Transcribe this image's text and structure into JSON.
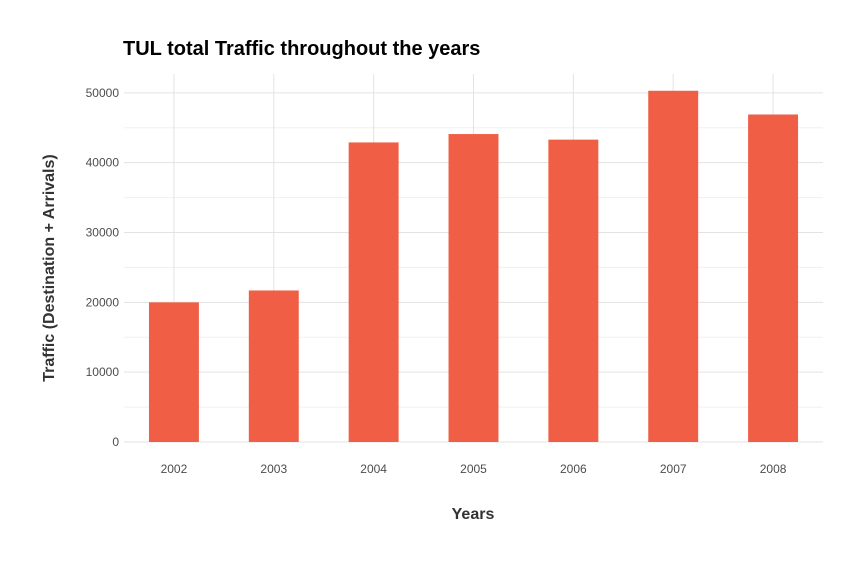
{
  "chart_data": {
    "type": "bar",
    "title": "TUL total Traffic throughout the years",
    "xlabel": "Years",
    "ylabel": "Traffic (Destination + Arrivals)",
    "categories": [
      "2002",
      "2003",
      "2004",
      "2005",
      "2006",
      "2007",
      "2008"
    ],
    "values": [
      20000,
      21700,
      42900,
      44100,
      43300,
      50300,
      46900
    ],
    "ylim": [
      0,
      52700
    ],
    "yticks": [
      0,
      10000,
      20000,
      30000,
      40000,
      50000
    ],
    "ytick_labels": [
      "0",
      "10000",
      "20000",
      "30000",
      "40000",
      "50000"
    ],
    "grid": true,
    "bar_color": "#EF5E45"
  }
}
